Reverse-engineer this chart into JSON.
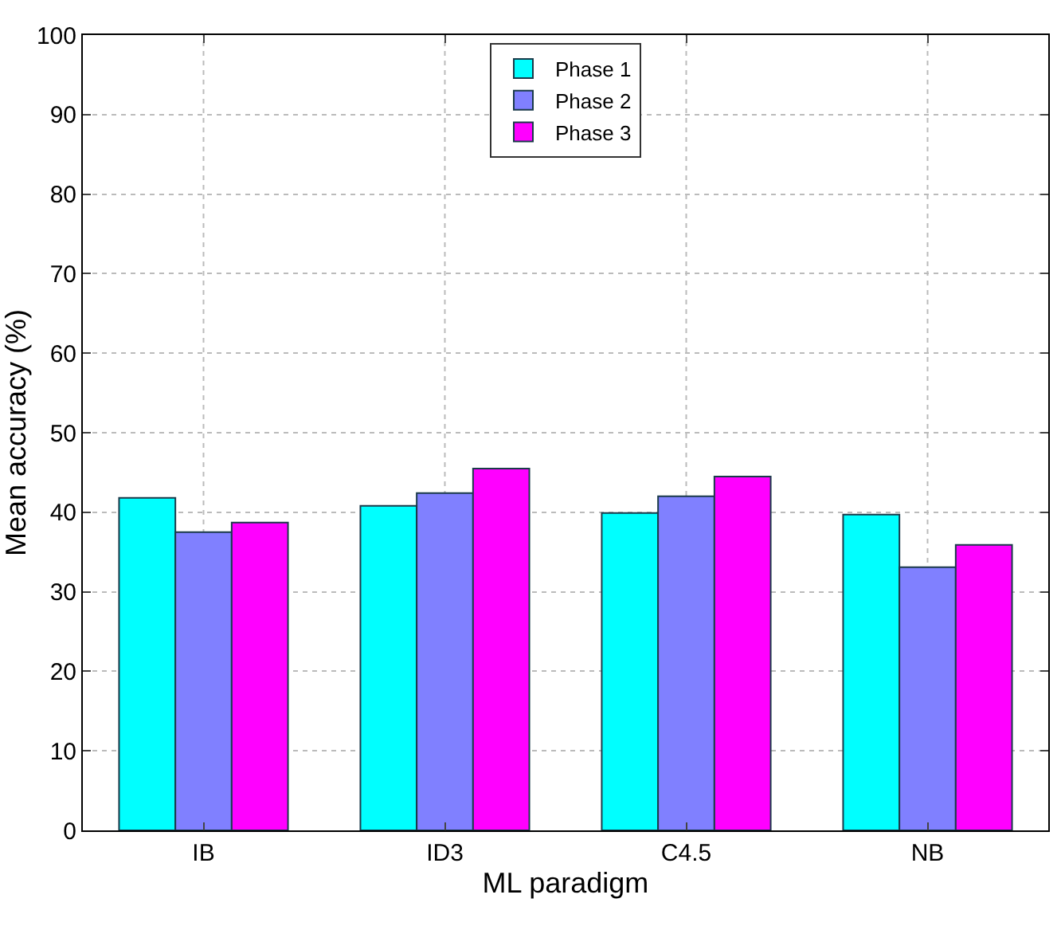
{
  "chart_data": {
    "type": "bar",
    "xlabel": "ML paradigm",
    "ylabel": "Mean accuracy (%)",
    "categories": [
      "IB",
      "ID3",
      "C4.5",
      "NB"
    ],
    "series": [
      {
        "name": "Phase 1",
        "color": "#00ffff",
        "values": [
          41.8,
          40.8,
          39.9,
          39.7
        ]
      },
      {
        "name": "Phase 2",
        "color": "#8080ff",
        "values": [
          37.5,
          42.4,
          42.0,
          33.1
        ]
      },
      {
        "name": "Phase 3",
        "color": "#ff00ff",
        "values": [
          38.7,
          45.5,
          44.5,
          35.9
        ]
      }
    ],
    "ylim": [
      0,
      100
    ],
    "yticks": [
      0,
      10,
      20,
      30,
      40,
      50,
      60,
      70,
      80,
      90,
      100
    ],
    "grid": true,
    "legend": "top"
  }
}
